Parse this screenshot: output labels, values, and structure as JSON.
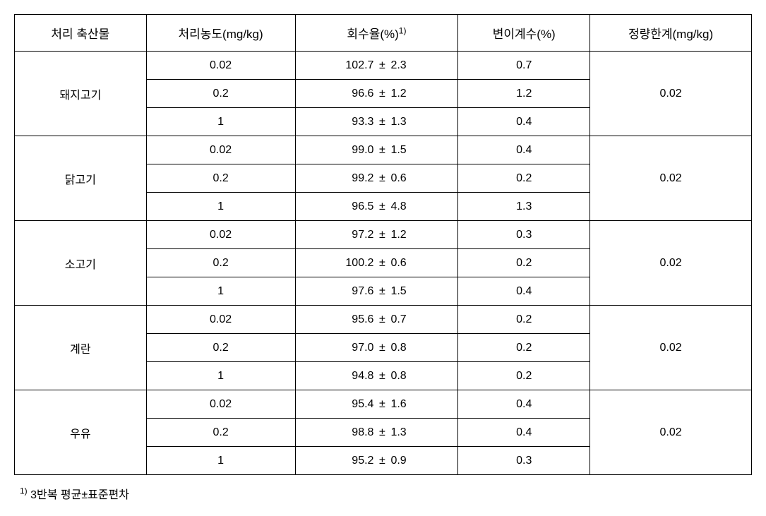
{
  "headers": {
    "sample": "처리 축산물",
    "concentration": "처리농도(mg/kg)",
    "recovery_pre": "회수율(%)",
    "recovery_sup": "1)",
    "cv": "변이계수(%)",
    "loq": "정량한계(mg/kg)"
  },
  "groups": [
    {
      "sample": "돼지고기",
      "loq": "0.02",
      "rows": [
        {
          "conc": "0.02",
          "rec_val": "102.7",
          "rec_sd": "2.3",
          "cv": "0.7"
        },
        {
          "conc": "0.2",
          "rec_val": "96.6",
          "rec_sd": "1.2",
          "cv": "1.2"
        },
        {
          "conc": "1",
          "rec_val": "93.3",
          "rec_sd": "1.3",
          "cv": "0.4"
        }
      ]
    },
    {
      "sample": "닭고기",
      "loq": "0.02",
      "rows": [
        {
          "conc": "0.02",
          "rec_val": "99.0",
          "rec_sd": "1.5",
          "cv": "0.4"
        },
        {
          "conc": "0.2",
          "rec_val": "99.2",
          "rec_sd": "0.6",
          "cv": "0.2"
        },
        {
          "conc": "1",
          "rec_val": "96.5",
          "rec_sd": "4.8",
          "cv": "1.3"
        }
      ]
    },
    {
      "sample": "소고기",
      "loq": "0.02",
      "rows": [
        {
          "conc": "0.02",
          "rec_val": "97.2",
          "rec_sd": "1.2",
          "cv": "0.3"
        },
        {
          "conc": "0.2",
          "rec_val": "100.2",
          "rec_sd": "0.6",
          "cv": "0.2"
        },
        {
          "conc": "1",
          "rec_val": "97.6",
          "rec_sd": "1.5",
          "cv": "0.4"
        }
      ]
    },
    {
      "sample": "계란",
      "loq": "0.02",
      "rows": [
        {
          "conc": "0.02",
          "rec_val": "95.6",
          "rec_sd": "0.7",
          "cv": "0.2"
        },
        {
          "conc": "0.2",
          "rec_val": "97.0",
          "rec_sd": "0.8",
          "cv": "0.2"
        },
        {
          "conc": "1",
          "rec_val": "94.8",
          "rec_sd": "0.8",
          "cv": "0.2"
        }
      ]
    },
    {
      "sample": "우유",
      "loq": "0.02",
      "rows": [
        {
          "conc": "0.02",
          "rec_val": "95.4",
          "rec_sd": "1.6",
          "cv": "0.4"
        },
        {
          "conc": "0.2",
          "rec_val": "98.8",
          "rec_sd": "1.3",
          "cv": "0.4"
        },
        {
          "conc": "1",
          "rec_val": "95.2",
          "rec_sd": "0.9",
          "cv": "0.3"
        }
      ]
    }
  ],
  "separator": "±",
  "footnote": {
    "sup": "1)",
    "text": " 3반복 평균±표준편차"
  }
}
